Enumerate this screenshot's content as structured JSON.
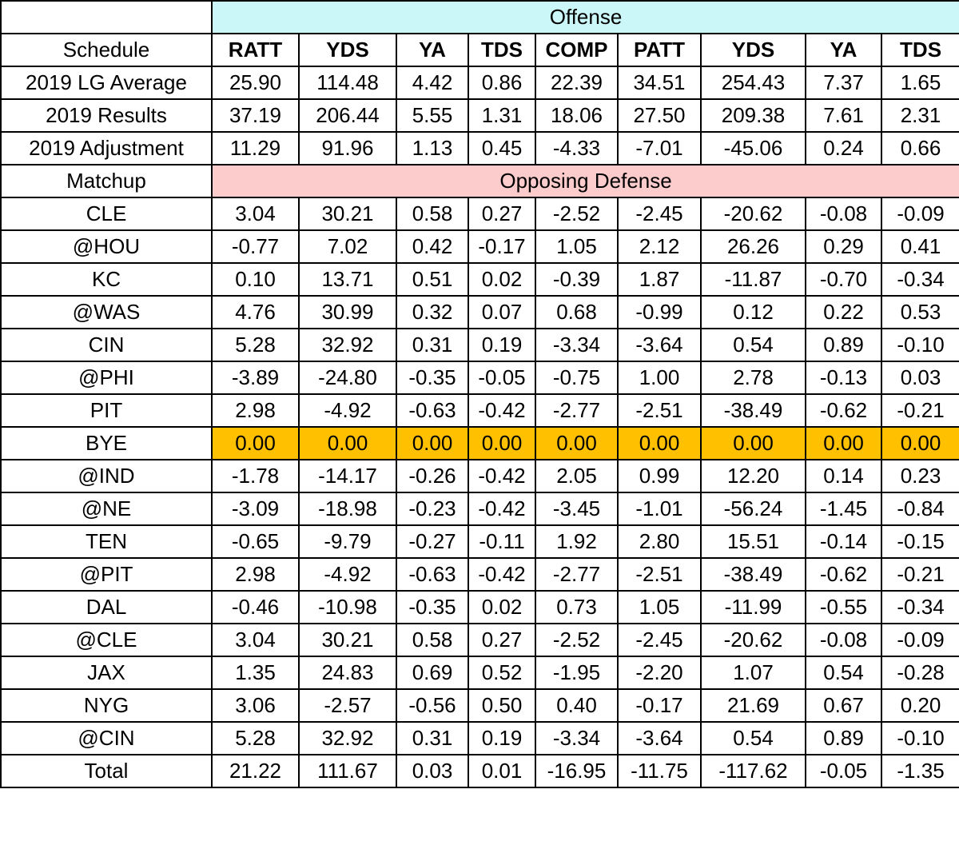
{
  "offense_label": "Offense",
  "defense_label": "Opposing Defense",
  "schedule_label": "Schedule",
  "matchup_label": "Matchup",
  "columns": [
    "RATT",
    "YDS",
    "YA",
    "TDS",
    "COMP",
    "PATT",
    "YDS",
    "YA",
    "TDS"
  ],
  "summary_rows": [
    {
      "label": "2019 LG Average",
      "values": [
        "25.90",
        "114.48",
        "4.42",
        "0.86",
        "22.39",
        "34.51",
        "254.43",
        "7.37",
        "1.65"
      ]
    },
    {
      "label": "2019 Results",
      "values": [
        "37.19",
        "206.44",
        "5.55",
        "1.31",
        "18.06",
        "27.50",
        "209.38",
        "7.61",
        "2.31"
      ]
    },
    {
      "label": "2019 Adjustment",
      "values": [
        "11.29",
        "91.96",
        "1.13",
        "0.45",
        "-4.33",
        "-7.01",
        "-45.06",
        "0.24",
        "0.66"
      ]
    }
  ],
  "matchup_rows": [
    {
      "label": "CLE",
      "values": [
        "3.04",
        "30.21",
        "0.58",
        "0.27",
        "-2.52",
        "-2.45",
        "-20.62",
        "-0.08",
        "-0.09"
      ]
    },
    {
      "label": "@HOU",
      "values": [
        "-0.77",
        "7.02",
        "0.42",
        "-0.17",
        "1.05",
        "2.12",
        "26.26",
        "0.29",
        "0.41"
      ]
    },
    {
      "label": "KC",
      "values": [
        "0.10",
        "13.71",
        "0.51",
        "0.02",
        "-0.39",
        "1.87",
        "-11.87",
        "-0.70",
        "-0.34"
      ]
    },
    {
      "label": "@WAS",
      "values": [
        "4.76",
        "30.99",
        "0.32",
        "0.07",
        "0.68",
        "-0.99",
        "0.12",
        "0.22",
        "0.53"
      ]
    },
    {
      "label": "CIN",
      "values": [
        "5.28",
        "32.92",
        "0.31",
        "0.19",
        "-3.34",
        "-3.64",
        "0.54",
        "0.89",
        "-0.10"
      ]
    },
    {
      "label": "@PHI",
      "values": [
        "-3.89",
        "-24.80",
        "-0.35",
        "-0.05",
        "-0.75",
        "1.00",
        "2.78",
        "-0.13",
        "0.03"
      ]
    },
    {
      "label": "PIT",
      "values": [
        "2.98",
        "-4.92",
        "-0.63",
        "-0.42",
        "-2.77",
        "-2.51",
        "-38.49",
        "-0.62",
        "-0.21"
      ]
    },
    {
      "label": "BYE",
      "values": [
        "0.00",
        "0.00",
        "0.00",
        "0.00",
        "0.00",
        "0.00",
        "0.00",
        "0.00",
        "0.00"
      ]
    },
    {
      "label": "@IND",
      "values": [
        "-1.78",
        "-14.17",
        "-0.26",
        "-0.42",
        "2.05",
        "0.99",
        "12.20",
        "0.14",
        "0.23"
      ]
    },
    {
      "label": "@NE",
      "values": [
        "-3.09",
        "-18.98",
        "-0.23",
        "-0.42",
        "-3.45",
        "-1.01",
        "-56.24",
        "-1.45",
        "-0.84"
      ]
    },
    {
      "label": "TEN",
      "values": [
        "-0.65",
        "-9.79",
        "-0.27",
        "-0.11",
        "1.92",
        "2.80",
        "15.51",
        "-0.14",
        "-0.15"
      ]
    },
    {
      "label": "@PIT",
      "values": [
        "2.98",
        "-4.92",
        "-0.63",
        "-0.42",
        "-2.77",
        "-2.51",
        "-38.49",
        "-0.62",
        "-0.21"
      ]
    },
    {
      "label": "DAL",
      "values": [
        "-0.46",
        "-10.98",
        "-0.35",
        "0.02",
        "0.73",
        "1.05",
        "-11.99",
        "-0.55",
        "-0.34"
      ]
    },
    {
      "label": "@CLE",
      "values": [
        "3.04",
        "30.21",
        "0.58",
        "0.27",
        "-2.52",
        "-2.45",
        "-20.62",
        "-0.08",
        "-0.09"
      ]
    },
    {
      "label": "JAX",
      "values": [
        "1.35",
        "24.83",
        "0.69",
        "0.52",
        "-1.95",
        "-2.20",
        "1.07",
        "0.54",
        "-0.28"
      ]
    },
    {
      "label": "NYG",
      "values": [
        "3.06",
        "-2.57",
        "-0.56",
        "0.50",
        "0.40",
        "-0.17",
        "21.69",
        "0.67",
        "0.20"
      ]
    },
    {
      "label": "@CIN",
      "values": [
        "5.28",
        "32.92",
        "0.31",
        "0.19",
        "-3.34",
        "-3.64",
        "0.54",
        "0.89",
        "-0.10"
      ]
    }
  ],
  "total_row": {
    "label": "Total",
    "values": [
      "21.22",
      "111.67",
      "0.03",
      "0.01",
      "-16.95",
      "-11.75",
      "-117.62",
      "-0.05",
      "-1.35"
    ]
  },
  "colors": {
    "offense_band": "#ccf7f8",
    "defense_band": "#fccccc",
    "bye_highlight": "#ffc000"
  }
}
